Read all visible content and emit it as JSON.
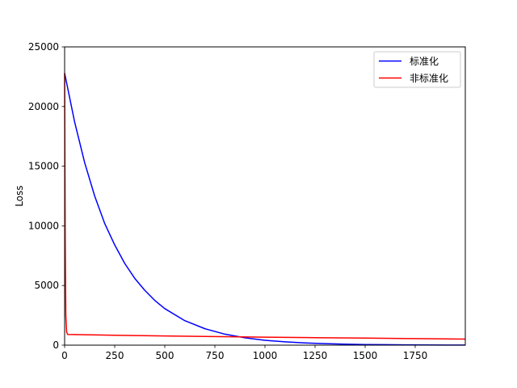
{
  "chart_data": {
    "type": "line",
    "title": "",
    "xlabel": "",
    "ylabel": "Loss",
    "xlim": [
      0,
      2000
    ],
    "ylim": [
      0,
      25000
    ],
    "xticks": [
      0,
      250,
      500,
      750,
      1000,
      1250,
      1500,
      1750
    ],
    "yticks": [
      0,
      5000,
      10000,
      15000,
      20000,
      25000
    ],
    "grid": false,
    "legend_position": "top-right",
    "series": [
      {
        "name": "标准化",
        "color": "#0000ff",
        "x": [
          0,
          50,
          100,
          150,
          200,
          250,
          300,
          350,
          400,
          450,
          500,
          600,
          700,
          800,
          900,
          1000,
          1100,
          1200,
          1300,
          1400,
          1500,
          1600,
          1700,
          1800,
          1900,
          2000
        ],
        "y": [
          22800,
          18700,
          15300,
          12500,
          10200,
          8400,
          6850,
          5600,
          4600,
          3750,
          3060,
          2050,
          1380,
          920,
          620,
          410,
          280,
          185,
          125,
          85,
          55,
          40,
          25,
          18,
          12,
          8
        ]
      },
      {
        "name": "非标准化",
        "color": "#ff0000",
        "x": [
          0,
          3,
          6,
          10,
          15,
          250,
          500,
          750,
          1000,
          1250,
          1500,
          1750,
          2000
        ],
        "y": [
          22800,
          9000,
          2500,
          1100,
          900,
          830,
          770,
          720,
          670,
          630,
          590,
          550,
          510
        ]
      }
    ]
  }
}
